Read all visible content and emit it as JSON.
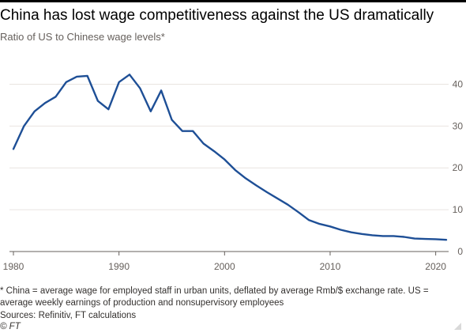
{
  "title": "China has lost wage competitiveness against the US dramatically",
  "subtitle": "Ratio of US to Chinese wage levels*",
  "footnote": "* China = average wage for employed staff in urban units, deflated by average Rmb/$ exchange rate. US = average weekly earnings of production and nonsupervisory employees",
  "source": "Sources: Refinitiv, FT calculations",
  "credit": "© FT",
  "colors": {
    "line": "#1e4f96",
    "grid": "#e9e4e0",
    "text": "#66605c"
  },
  "chart_data": {
    "type": "line",
    "title": "China has lost wage competitiveness against the US dramatically",
    "subtitle": "Ratio of US to Chinese wage levels*",
    "xlim": [
      1980,
      2021
    ],
    "ylim": [
      0,
      45
    ],
    "xticks": [
      1980,
      1990,
      2000,
      2010,
      2020
    ],
    "yticks": [
      0,
      10,
      20,
      30,
      40
    ],
    "grid": "horizontal",
    "x": [
      1980,
      1981,
      1982,
      1983,
      1984,
      1985,
      1986,
      1987,
      1988,
      1989,
      1990,
      1991,
      1992,
      1993,
      1994,
      1995,
      1996,
      1997,
      1998,
      1999,
      2000,
      2001,
      2002,
      2003,
      2004,
      2005,
      2006,
      2007,
      2008,
      2009,
      2010,
      2011,
      2012,
      2013,
      2014,
      2015,
      2016,
      2017,
      2018,
      2019,
      2020,
      2021
    ],
    "series": [
      {
        "values": [
          24.5,
          30.0,
          33.5,
          35.5,
          37.0,
          40.5,
          41.8,
          42.0,
          36.0,
          34.0,
          40.5,
          42.3,
          39.0,
          33.5,
          38.5,
          31.5,
          28.8,
          28.8,
          25.8,
          24.0,
          22.0,
          19.5,
          17.5,
          15.8,
          14.2,
          12.7,
          11.2,
          9.4,
          7.5,
          6.6,
          6.0,
          5.2,
          4.6,
          4.2,
          3.9,
          3.7,
          3.7,
          3.5,
          3.1,
          3.0,
          2.95,
          2.8
        ]
      }
    ]
  }
}
